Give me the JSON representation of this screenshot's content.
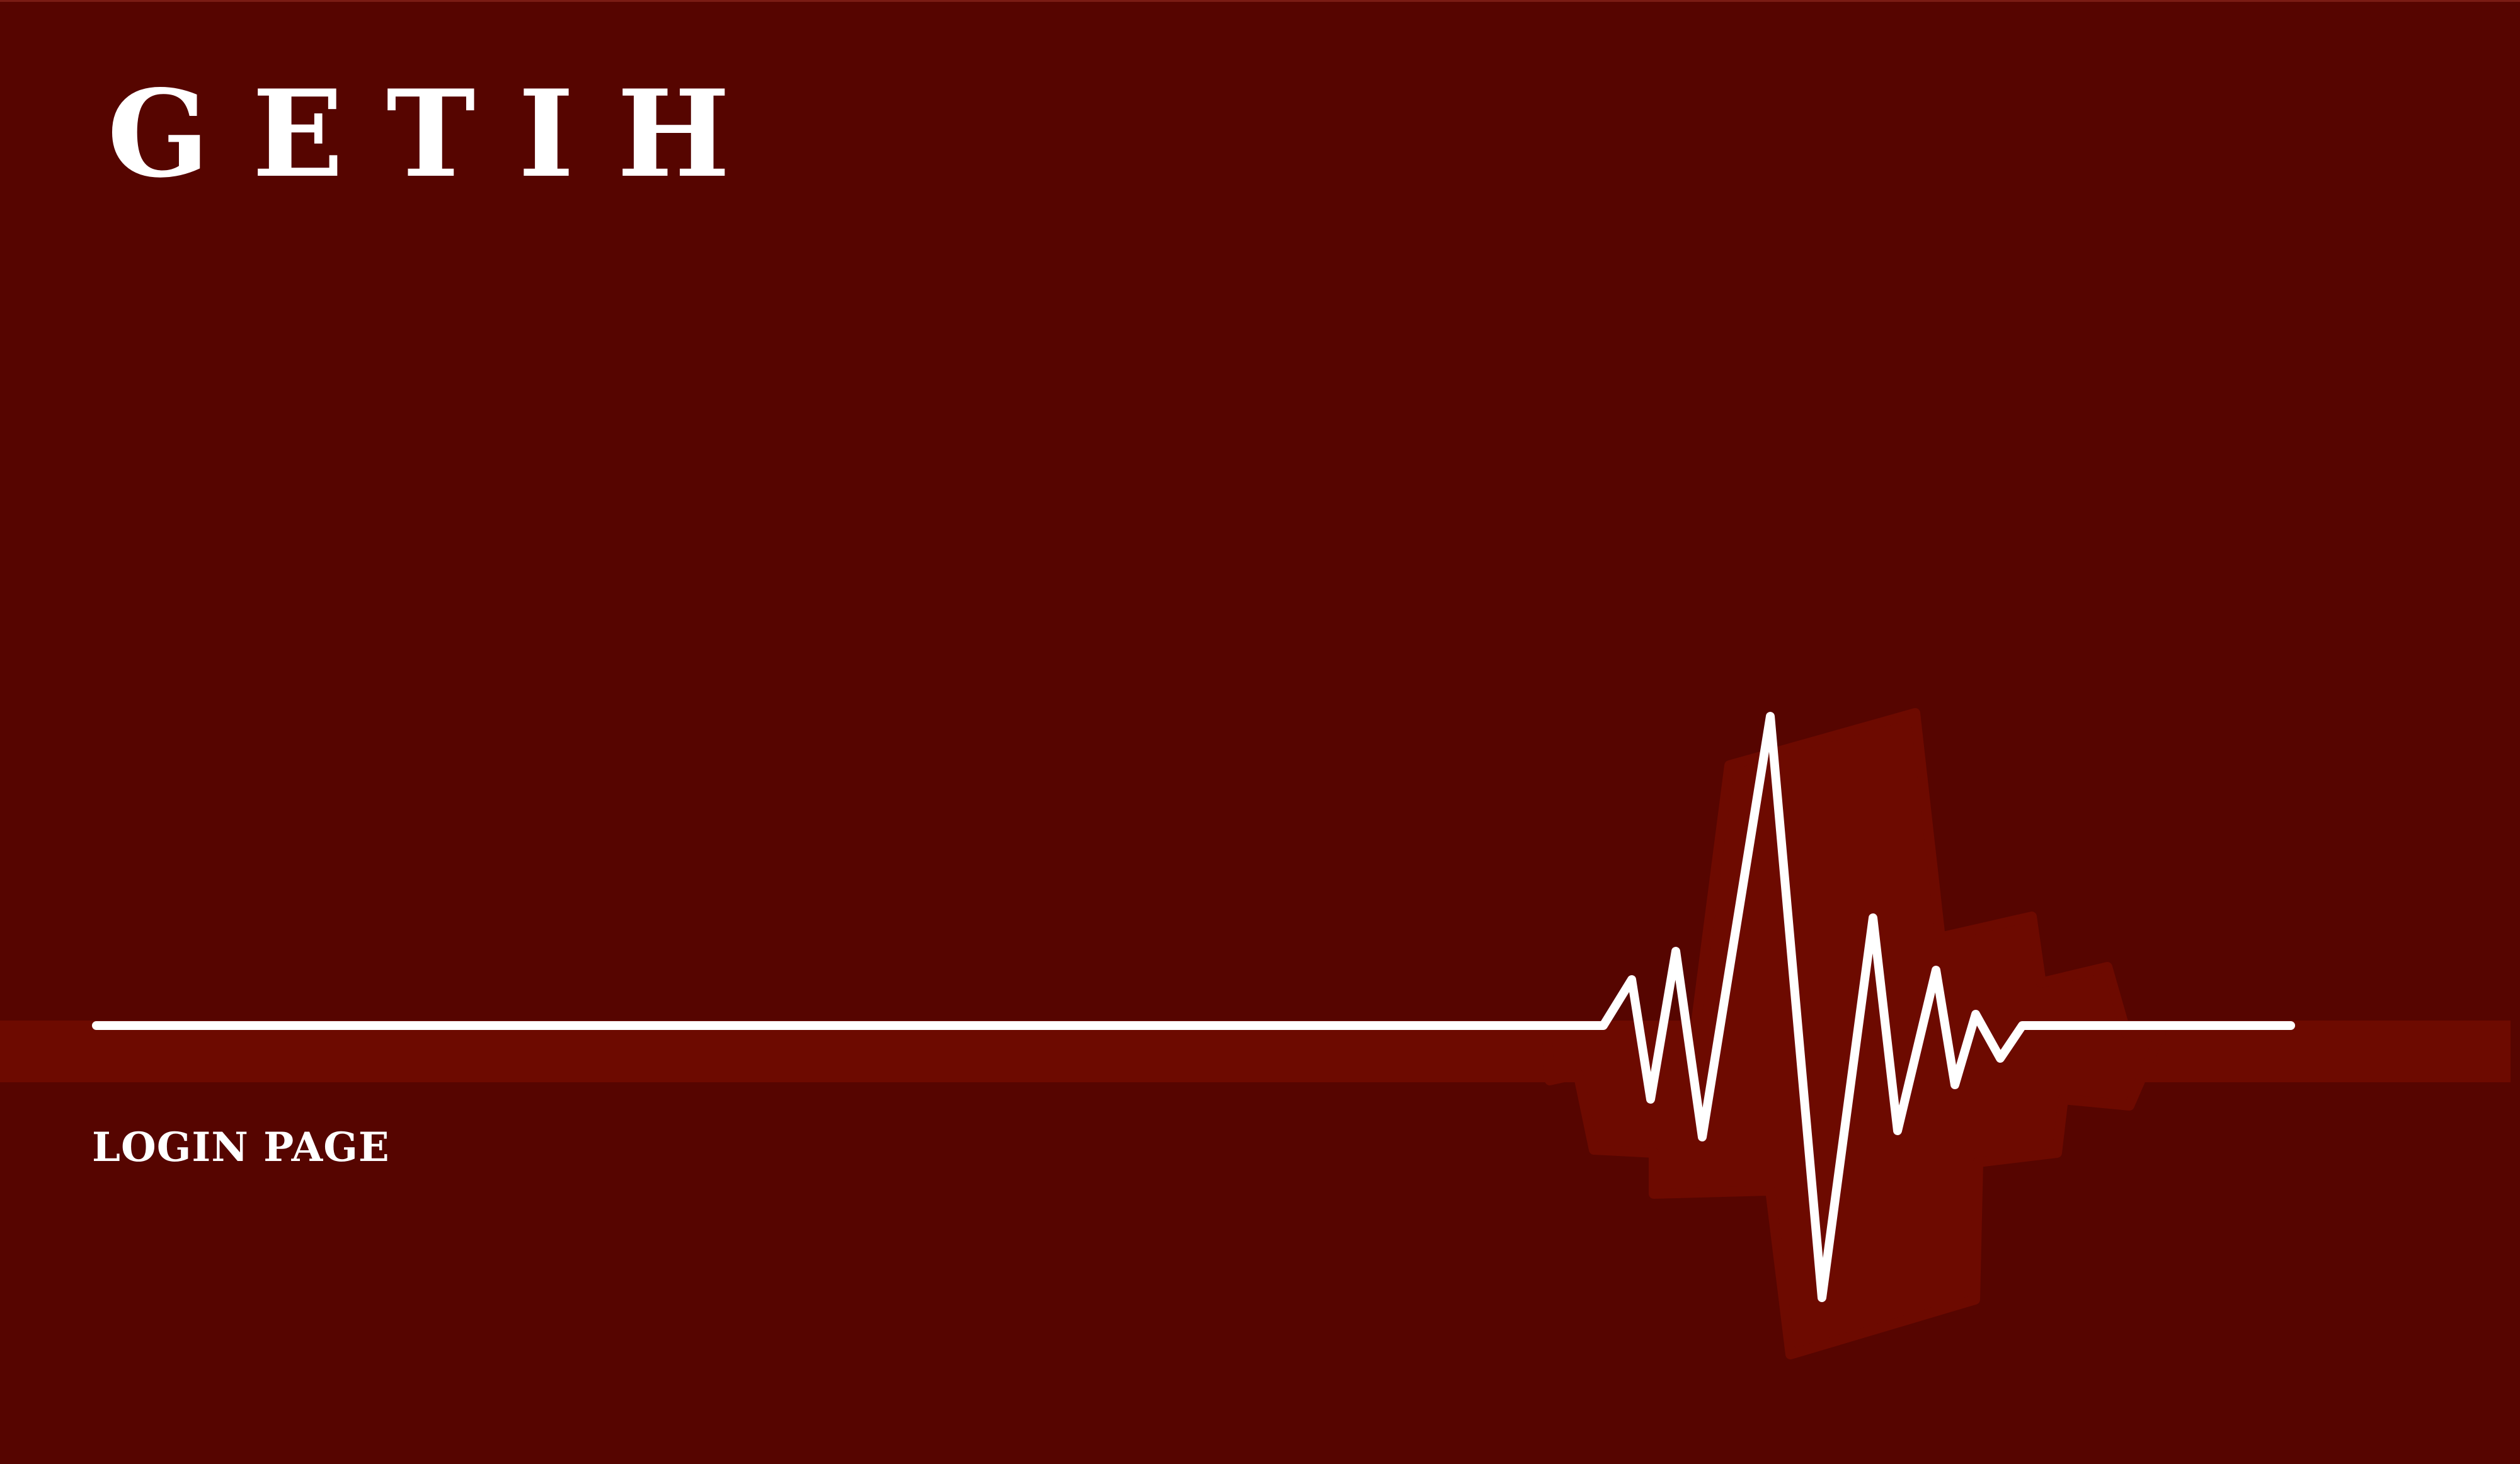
{
  "brand": {
    "title": "GETIH"
  },
  "page": {
    "subtitle": "LOGIN PAGE"
  },
  "colors": {
    "background": "#560500",
    "band": "#6d0a00",
    "line": "#ffffff"
  },
  "decor": {
    "heartbeat_icon": "heartbeat-line-icon",
    "shadow_icon": "pulse-shadow-shape"
  }
}
